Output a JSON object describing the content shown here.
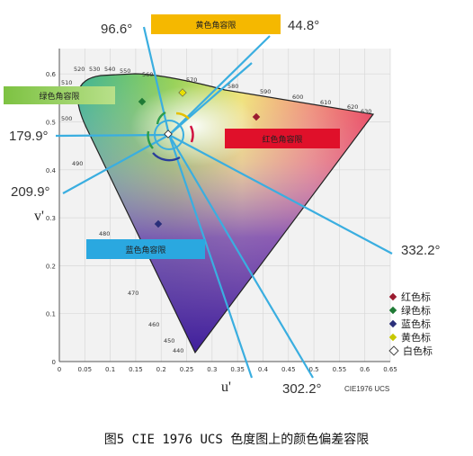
{
  "figure": {
    "caption": "图5  CIE 1976 UCS 色度图上的颜色偏差容限",
    "system_label": "CIE1976 UCS",
    "axis_u": "u'",
    "axis_v": "v'",
    "x_ticks": [
      "0",
      "0.05",
      "0.1",
      "0.15",
      "0.2",
      "0.25",
      "0.3",
      "0.35",
      "0.4",
      "0.45",
      "0.5",
      "0.55",
      "0.6",
      "0.65"
    ],
    "y_ticks": [
      "0",
      "0.1",
      "0.2",
      "0.3",
      "0.4",
      "0.5",
      "0.6"
    ],
    "wavelengths": [
      "520",
      "530",
      "540",
      "550",
      "560",
      "570",
      "580",
      "590",
      "600",
      "610",
      "620",
      "630",
      "510",
      "500",
      "490",
      "480",
      "470",
      "460",
      "450",
      "440"
    ]
  },
  "angles": {
    "a96": "96.6°",
    "a44": "44.8°",
    "a179": "179.9°",
    "a209": "209.9°",
    "a332": "332.2°",
    "a302": "302.2°"
  },
  "bands": {
    "yellow": "黄色角容限",
    "green": "绿色角容限",
    "red": "红色角容限",
    "blue": "蓝色角容限"
  },
  "legend": [
    {
      "label": "红色标",
      "color": "#9b1b30"
    },
    {
      "label": "绿色标",
      "color": "#1f7a35"
    },
    {
      "label": "蓝色标",
      "color": "#2a2f7a"
    },
    {
      "label": "黄色标",
      "color": "#c8c800"
    },
    {
      "label": "白色标",
      "color": "#ffffff"
    }
  ],
  "colors": {
    "yellow_band": "#f5b800",
    "green_band": "#7dc242",
    "red_band": "#e0102a",
    "blue_band": "#2aa8e0",
    "rays": "#3aaee0"
  }
}
